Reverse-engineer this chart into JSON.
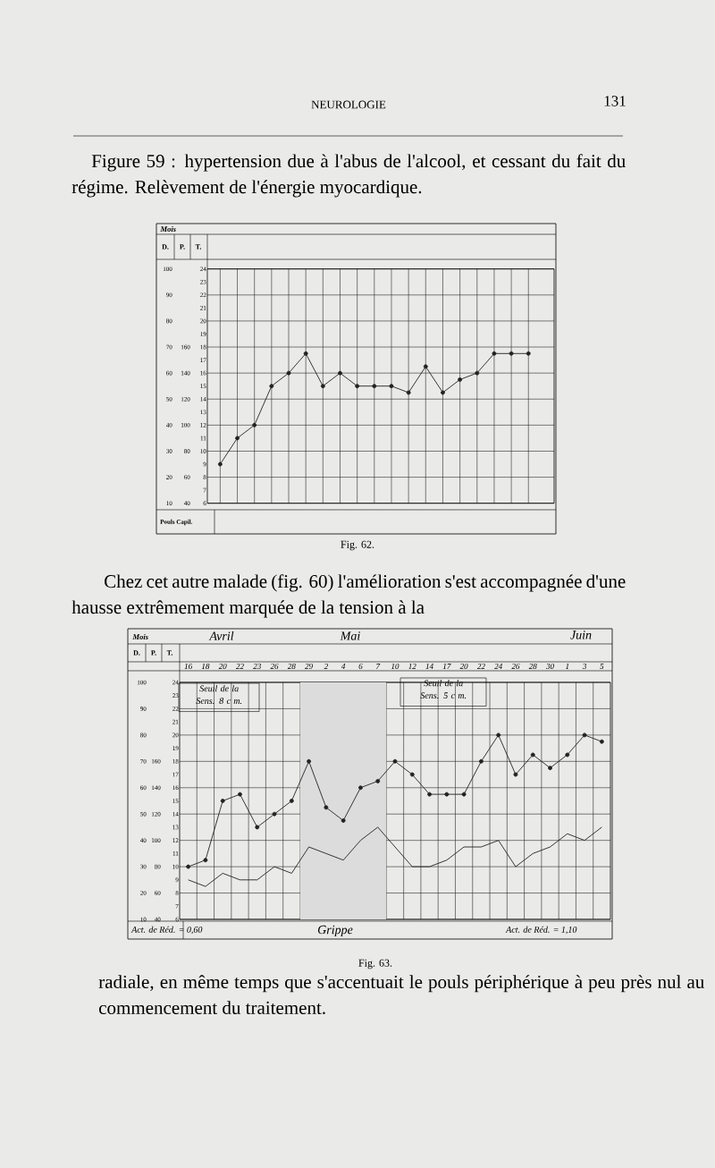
{
  "chart_data": [
    {
      "type": "line",
      "title": "Figure 59 : hypertension due à l'abus de l'alcool, et cessant du fait du régime. Relèvement de l'énergie myocardique.",
      "xlabel": "Mois",
      "ylabel": "T.",
      "y2label": "D.",
      "y3label": "P.",
      "categories": [
        null,
        null,
        null,
        null,
        null,
        null,
        null,
        null,
        null,
        null,
        null,
        null,
        null,
        null,
        null,
        null,
        null,
        null,
        null
      ],
      "values": [
        9,
        11,
        12,
        15,
        16,
        17.5,
        15,
        16,
        15,
        15,
        15,
        14.5,
        16.5,
        14.5,
        15.5,
        16,
        17.5,
        17.5,
        17.5
      ],
      "color": "#222222",
      "marker": "circle",
      "line_style": "solid",
      "grid": true,
      "ylim": [
        6,
        24
      ],
      "yticks": [
        6,
        7,
        8,
        9,
        10,
        11,
        12,
        13,
        14,
        15,
        16,
        17,
        18,
        19,
        20,
        21,
        22,
        23,
        24
      ],
      "y2lim": [
        10,
        100
      ],
      "y2ticks": [
        10,
        20,
        30,
        40,
        50,
        60,
        70,
        80,
        90,
        100
      ],
      "y3lim": [
        40,
        220
      ],
      "y3ticks": [
        40,
        60,
        80,
        100,
        120,
        140,
        160
      ],
      "annotations": [
        "NEUROLOGIE",
        "131",
        "Pouls Capil.",
        "Fig. 62."
      ]
    },
    {
      "type": "line",
      "xlabel": "Mois",
      "ylabel": "T.",
      "y2label": "D.",
      "y3label": "P.",
      "categories": [
        "16",
        "18",
        "20",
        "22",
        "23",
        "26",
        "28",
        "29",
        "2",
        "4",
        "6",
        "7",
        "10",
        "12",
        "14",
        "17",
        "20",
        "22",
        "24",
        "26",
        "28",
        "30",
        "1",
        "3",
        "5"
      ],
      "series": [
        {
          "color": "#222222",
          "marker": "circle",
          "values": [
            10,
            10.5,
            15,
            15.5,
            13,
            14,
            15,
            18,
            14.5,
            13.5,
            16,
            16.5,
            18,
            17,
            15.5,
            15.5,
            15.5,
            18,
            20,
            17,
            18.5,
            17.5,
            18.5,
            20,
            19.5
          ]
        },
        {
          "color": "#222222",
          "marker": "none",
          "values": [
            9,
            8.5,
            9.5,
            9,
            9,
            10,
            9.5,
            11.5,
            11,
            10.5,
            12,
            13,
            11.5,
            10,
            10,
            10.5,
            11.5,
            11.5,
            12,
            10,
            11,
            11.5,
            12.5,
            12,
            13
          ]
        }
      ],
      "line_style": "solid",
      "grid": true,
      "ylim": [
        6,
        24
      ],
      "yticks": [
        6,
        7,
        8,
        9,
        10,
        11,
        12,
        13,
        14,
        15,
        16,
        17,
        18,
        19,
        20,
        21,
        22,
        23,
        24
      ],
      "y2lim": [
        10,
        100
      ],
      "y2ticks": [
        10,
        20,
        30,
        40,
        50,
        60,
        70,
        80,
        90,
        100
      ],
      "y3lim": [
        40,
        220
      ],
      "y3ticks": [
        40,
        60,
        80,
        100,
        120,
        140,
        160
      ],
      "bands": [
        {
          "axis": "x",
          "from": "29",
          "to": "7",
          "label": "Grippe",
          "color": "#dcdcdc"
        }
      ],
      "annotations": [
        "Chez cet autre malade (fig. 60) l'amélioration s'est accompagnée d'une hausse extrêmement marquée de la tension à la",
        "Avril",
        "Mai",
        "Juin",
        "Seuil de la Sens. 8 c m.",
        "Seuil de la Sens. 5 c m.",
        "Act. de Réd. = 0,60",
        "Act. de Réd. = 1,10",
        "Fig. 63.",
        "radiale, en même temps que s'accentuait le pouls périphérique à peu près nul au commencement du traitement."
      ]
    }
  ]
}
